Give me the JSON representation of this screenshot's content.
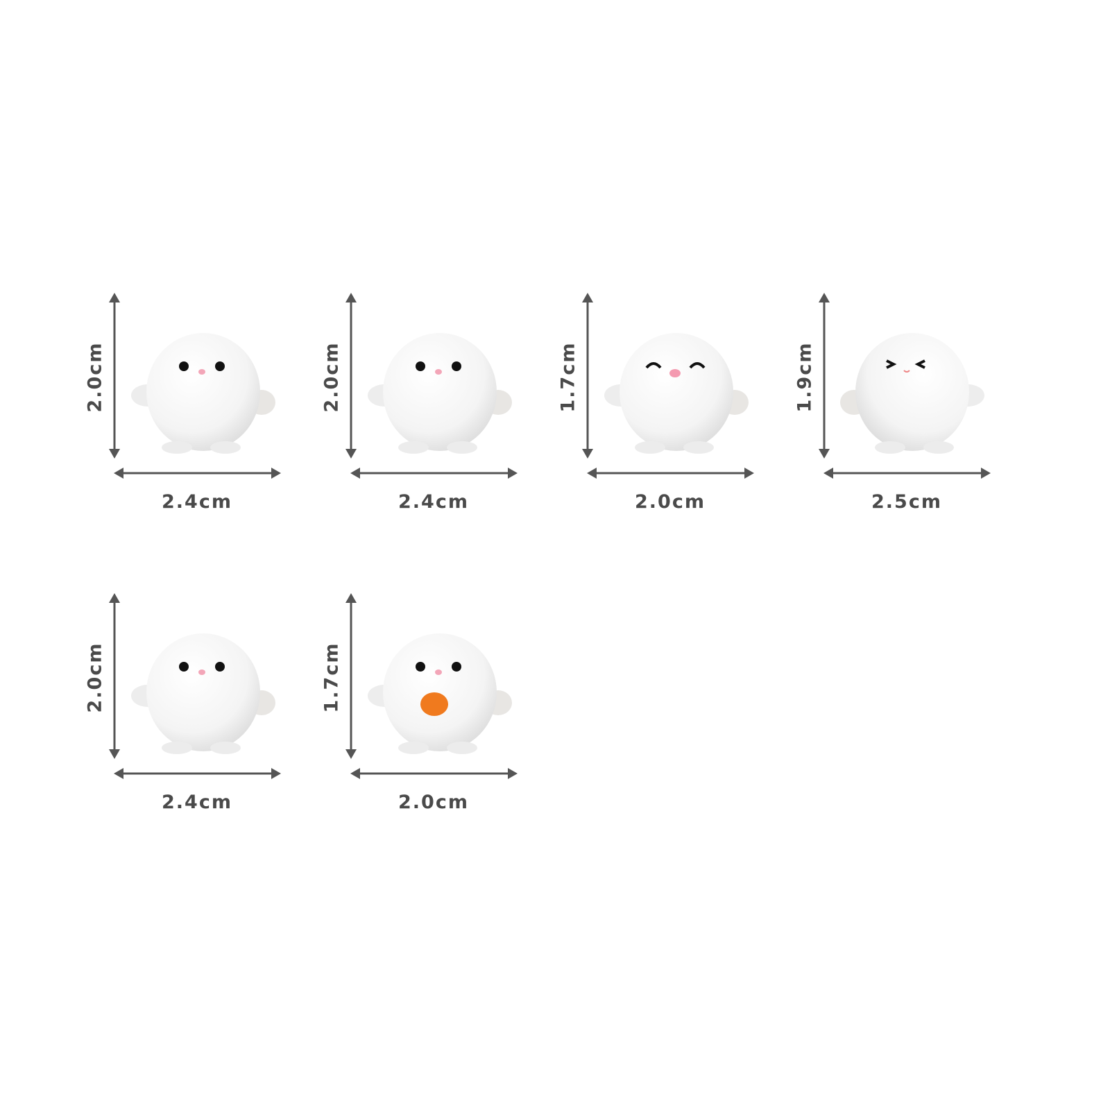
{
  "figures": [
    {
      "height_label": "2.0cm",
      "width_label": "2.4cm",
      "face": "dot-eyes"
    },
    {
      "height_label": "2.0cm",
      "width_label": "2.4cm",
      "face": "dot-eyes"
    },
    {
      "height_label": "1.7cm",
      "width_label": "2.0cm",
      "face": "happy-closed-eyes"
    },
    {
      "height_label": "1.9cm",
      "width_label": "2.5cm",
      "face": "squint-eyes"
    },
    {
      "height_label": "2.0cm",
      "width_label": "2.4cm",
      "face": "dot-eyes"
    },
    {
      "height_label": "1.7cm",
      "width_label": "2.0cm",
      "face": "dot-eyes-holding-orange"
    }
  ],
  "colors": {
    "arrow": "#555555",
    "label": "#4a4a4a",
    "body": "#f7f7f7",
    "blush": "#f3a6b8",
    "orange": "#f07a1e"
  }
}
